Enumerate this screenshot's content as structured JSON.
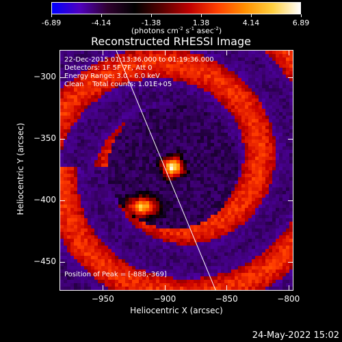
{
  "colorbar": {
    "colors": [
      "#0000ff",
      "#5000c0",
      "#300030",
      "#000000",
      "#5a0000",
      "#c00000",
      "#ff4000",
      "#ff9000",
      "#ffd040",
      "#ffffff"
    ],
    "ticks": [
      "-6.89",
      "-4.14",
      "-1.38",
      "1.38",
      "4.14",
      "6.89"
    ],
    "units": "(photons cm-2 s-1 asec-2)"
  },
  "title": "Reconstructed RHESSI Image",
  "info": {
    "time_range": "22-Dec-2015 01:13:36.000 to 01:19:36.000",
    "detectors": "Detectors: 1F 5F 7F, Att 0",
    "energy": "Energy Range: 3.0 - 6.0 keV",
    "method": "Clean    Total counts: 1.01E+05",
    "peak": "Position of Peak = [-888,-369]"
  },
  "axes": {
    "xlabel": "Heliocentric X (arcsec)",
    "ylabel": "Heliocentric Y (arcsec)",
    "xticks": [
      "-950",
      "-900",
      "-850",
      "-800"
    ],
    "yticks": [
      "-300",
      "-350",
      "-400",
      "-450"
    ],
    "xlim": [
      -985,
      -796
    ],
    "ylim": [
      -473,
      -278
    ]
  },
  "timestamp": "24-May-2022 15:02"
}
